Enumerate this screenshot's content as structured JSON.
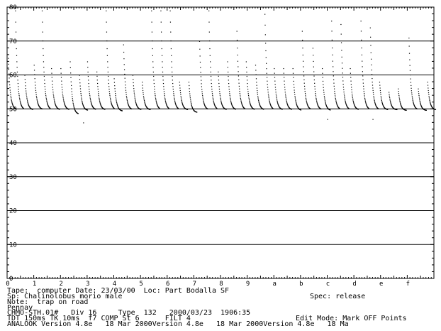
{
  "chart_data": {
    "type": "scatter",
    "y_ticks": [
      "80",
      "70",
      "60",
      "50",
      "40",
      "30",
      "20",
      "10",
      "0"
    ],
    "x_ticks": [
      "0",
      "1",
      "2",
      "3",
      "4",
      "5",
      "6",
      "7",
      "8",
      "9",
      "a",
      "b",
      "c",
      "d",
      "e",
      "f"
    ],
    "ylim": [
      0,
      80
    ],
    "xlim": [
      0,
      16
    ],
    "grid": "horizontal at each 10 kHz",
    "series": [
      {
        "calls": [
          {
            "x_start": 0.03,
            "f_start": 65,
            "f_end": 49.8
          },
          {
            "x_start": 0.3,
            "f_start": 79,
            "f_end": 49.8
          },
          {
            "x_start": 0.65,
            "f_start": 60,
            "f_end": 49.8
          },
          {
            "x_start": 1.0,
            "f_start": 63,
            "f_end": 49.9
          },
          {
            "x_start": 1.3,
            "f_start": 79,
            "f_end": 49.8
          },
          {
            "x_start": 1.65,
            "f_start": 62,
            "f_end": 49.8
          },
          {
            "x_start": 2.0,
            "f_start": 62,
            "f_end": 49.8
          },
          {
            "x_start": 2.35,
            "f_start": 64,
            "f_end": 48.5
          },
          {
            "x_start": 2.7,
            "f_start": 60,
            "f_end": 49.6
          },
          {
            "x_start": 3.0,
            "f_start": 64,
            "f_end": 49.8
          },
          {
            "x_start": 3.35,
            "f_start": 61,
            "f_end": 49.8
          },
          {
            "x_start": 3.7,
            "f_start": 79,
            "f_end": 49.8
          },
          {
            "x_start": 4.0,
            "f_start": 59,
            "f_end": 49.4
          },
          {
            "x_start": 4.35,
            "f_start": 69,
            "f_end": 49.8
          },
          {
            "x_start": 4.7,
            "f_start": 60,
            "f_end": 49.8
          },
          {
            "x_start": 5.05,
            "f_start": 58,
            "f_end": 49.8
          },
          {
            "x_start": 5.4,
            "f_start": 79,
            "f_end": 49.8
          },
          {
            "x_start": 5.75,
            "f_start": 79,
            "f_end": 49.8
          },
          {
            "x_start": 6.1,
            "f_start": 79,
            "f_end": 49.8
          },
          {
            "x_start": 6.45,
            "f_start": 58,
            "f_end": 49.8
          },
          {
            "x_start": 6.8,
            "f_start": 58,
            "f_end": 49.0
          },
          {
            "x_start": 7.2,
            "f_start": 70,
            "f_end": 49.8
          },
          {
            "x_start": 7.55,
            "f_start": 79,
            "f_end": 49.8
          },
          {
            "x_start": 7.9,
            "f_start": 61,
            "f_end": 49.8
          },
          {
            "x_start": 8.25,
            "f_start": 64,
            "f_end": 49.8
          },
          {
            "x_start": 8.6,
            "f_start": 73,
            "f_end": 49.8
          },
          {
            "x_start": 8.95,
            "f_start": 64,
            "f_end": 49.8
          },
          {
            "x_start": 9.3,
            "f_start": 63,
            "f_end": 49.8
          },
          {
            "x_start": 9.65,
            "f_start": 78,
            "f_end": 49.8
          },
          {
            "x_start": 10.0,
            "f_start": 62,
            "f_end": 49.8
          },
          {
            "x_start": 10.35,
            "f_start": 62,
            "f_end": 49.8
          },
          {
            "x_start": 10.7,
            "f_start": 62,
            "f_end": 49.6
          },
          {
            "x_start": 11.05,
            "f_start": 73,
            "f_end": 49.8
          },
          {
            "x_start": 11.45,
            "f_start": 68,
            "f_end": 49.8
          },
          {
            "x_start": 11.8,
            "f_start": 62,
            "f_end": 49.6
          },
          {
            "x_start": 12.15,
            "f_start": 76,
            "f_end": 49.8
          },
          {
            "x_start": 12.5,
            "f_start": 75,
            "f_end": 49.8
          },
          {
            "x_start": 12.85,
            "f_start": 62,
            "f_end": 49.8
          },
          {
            "x_start": 13.25,
            "f_start": 76,
            "f_end": 49.8
          },
          {
            "x_start": 13.6,
            "f_start": 74,
            "f_end": 49.8
          },
          {
            "x_start": 13.95,
            "f_start": 58,
            "f_end": 49.8
          },
          {
            "x_start": 14.3,
            "f_start": 55,
            "f_end": 49.8
          },
          {
            "x_start": 14.65,
            "f_start": 56,
            "f_end": 49.6
          },
          {
            "x_start": 15.05,
            "f_start": 71,
            "f_end": 49.8
          },
          {
            "x_start": 15.4,
            "f_start": 56,
            "f_end": 49.6
          },
          {
            "x_start": 15.75,
            "f_start": 58,
            "f_end": 49.8
          }
        ]
      }
    ],
    "outliers": [
      {
        "x": 2.85,
        "y": 46
      },
      {
        "x": 12.0,
        "y": 47
      },
      {
        "x": 13.7,
        "y": 47
      }
    ]
  },
  "info": {
    "line1": "Tape:  computer Date: 23/03/00  Loc: Part Bodalla SF",
    "line1_right": "Spec: release",
    "line2": "Sp: Chalinolobus morio male",
    "line3": "Note:  trap on road",
    "line4": "Pennay",
    "line5": "CHMO-STH.01#   Div 16     Type  132   2000/03/23  1906:35",
    "line6": "TDT 150ms TK 10ms  f7 COMP St 6      FILT 4",
    "line6_right": "Edit Mode: Mark OFF Points",
    "line7": "ANALOOK Version 4.8e   18 Mar 2000Version 4.8e   18 Mar 2000Version 4.8e   18 Ma"
  },
  "colors": {
    "background": "#ffffff",
    "ink": "#000000"
  }
}
